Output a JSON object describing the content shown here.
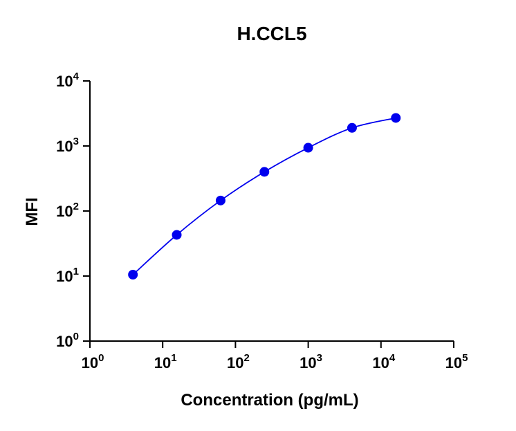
{
  "chart_data": {
    "type": "scatter",
    "title": "H.CCL5",
    "xlabel": "Concentration (pg/mL)",
    "ylabel": "MFI",
    "x_scale": "log",
    "y_scale": "log",
    "xlim": [
      1,
      100000
    ],
    "ylim": [
      1,
      10000
    ],
    "x_ticks": [
      {
        "value": 1,
        "base": "10",
        "exp": "0"
      },
      {
        "value": 10,
        "base": "10",
        "exp": "1"
      },
      {
        "value": 100,
        "base": "10",
        "exp": "2"
      },
      {
        "value": 1000,
        "base": "10",
        "exp": "3"
      },
      {
        "value": 10000,
        "base": "10",
        "exp": "4"
      },
      {
        "value": 100000,
        "base": "10",
        "exp": "5"
      }
    ],
    "y_ticks": [
      {
        "value": 1,
        "base": "10",
        "exp": "0"
      },
      {
        "value": 10,
        "base": "10",
        "exp": "1"
      },
      {
        "value": 100,
        "base": "10",
        "exp": "2"
      },
      {
        "value": 1000,
        "base": "10",
        "exp": "3"
      },
      {
        "value": 10000,
        "base": "10",
        "exp": "4"
      }
    ],
    "series": [
      {
        "x": [
          3.9,
          15.6,
          62.5,
          250,
          1000,
          4000,
          16000
        ],
        "y": [
          10.5,
          43,
          145,
          400,
          940,
          1900,
          2700
        ],
        "color": "#0000ee",
        "marker": "circle",
        "fit": "smooth curve"
      }
    ],
    "grid": false,
    "legend": "none"
  }
}
